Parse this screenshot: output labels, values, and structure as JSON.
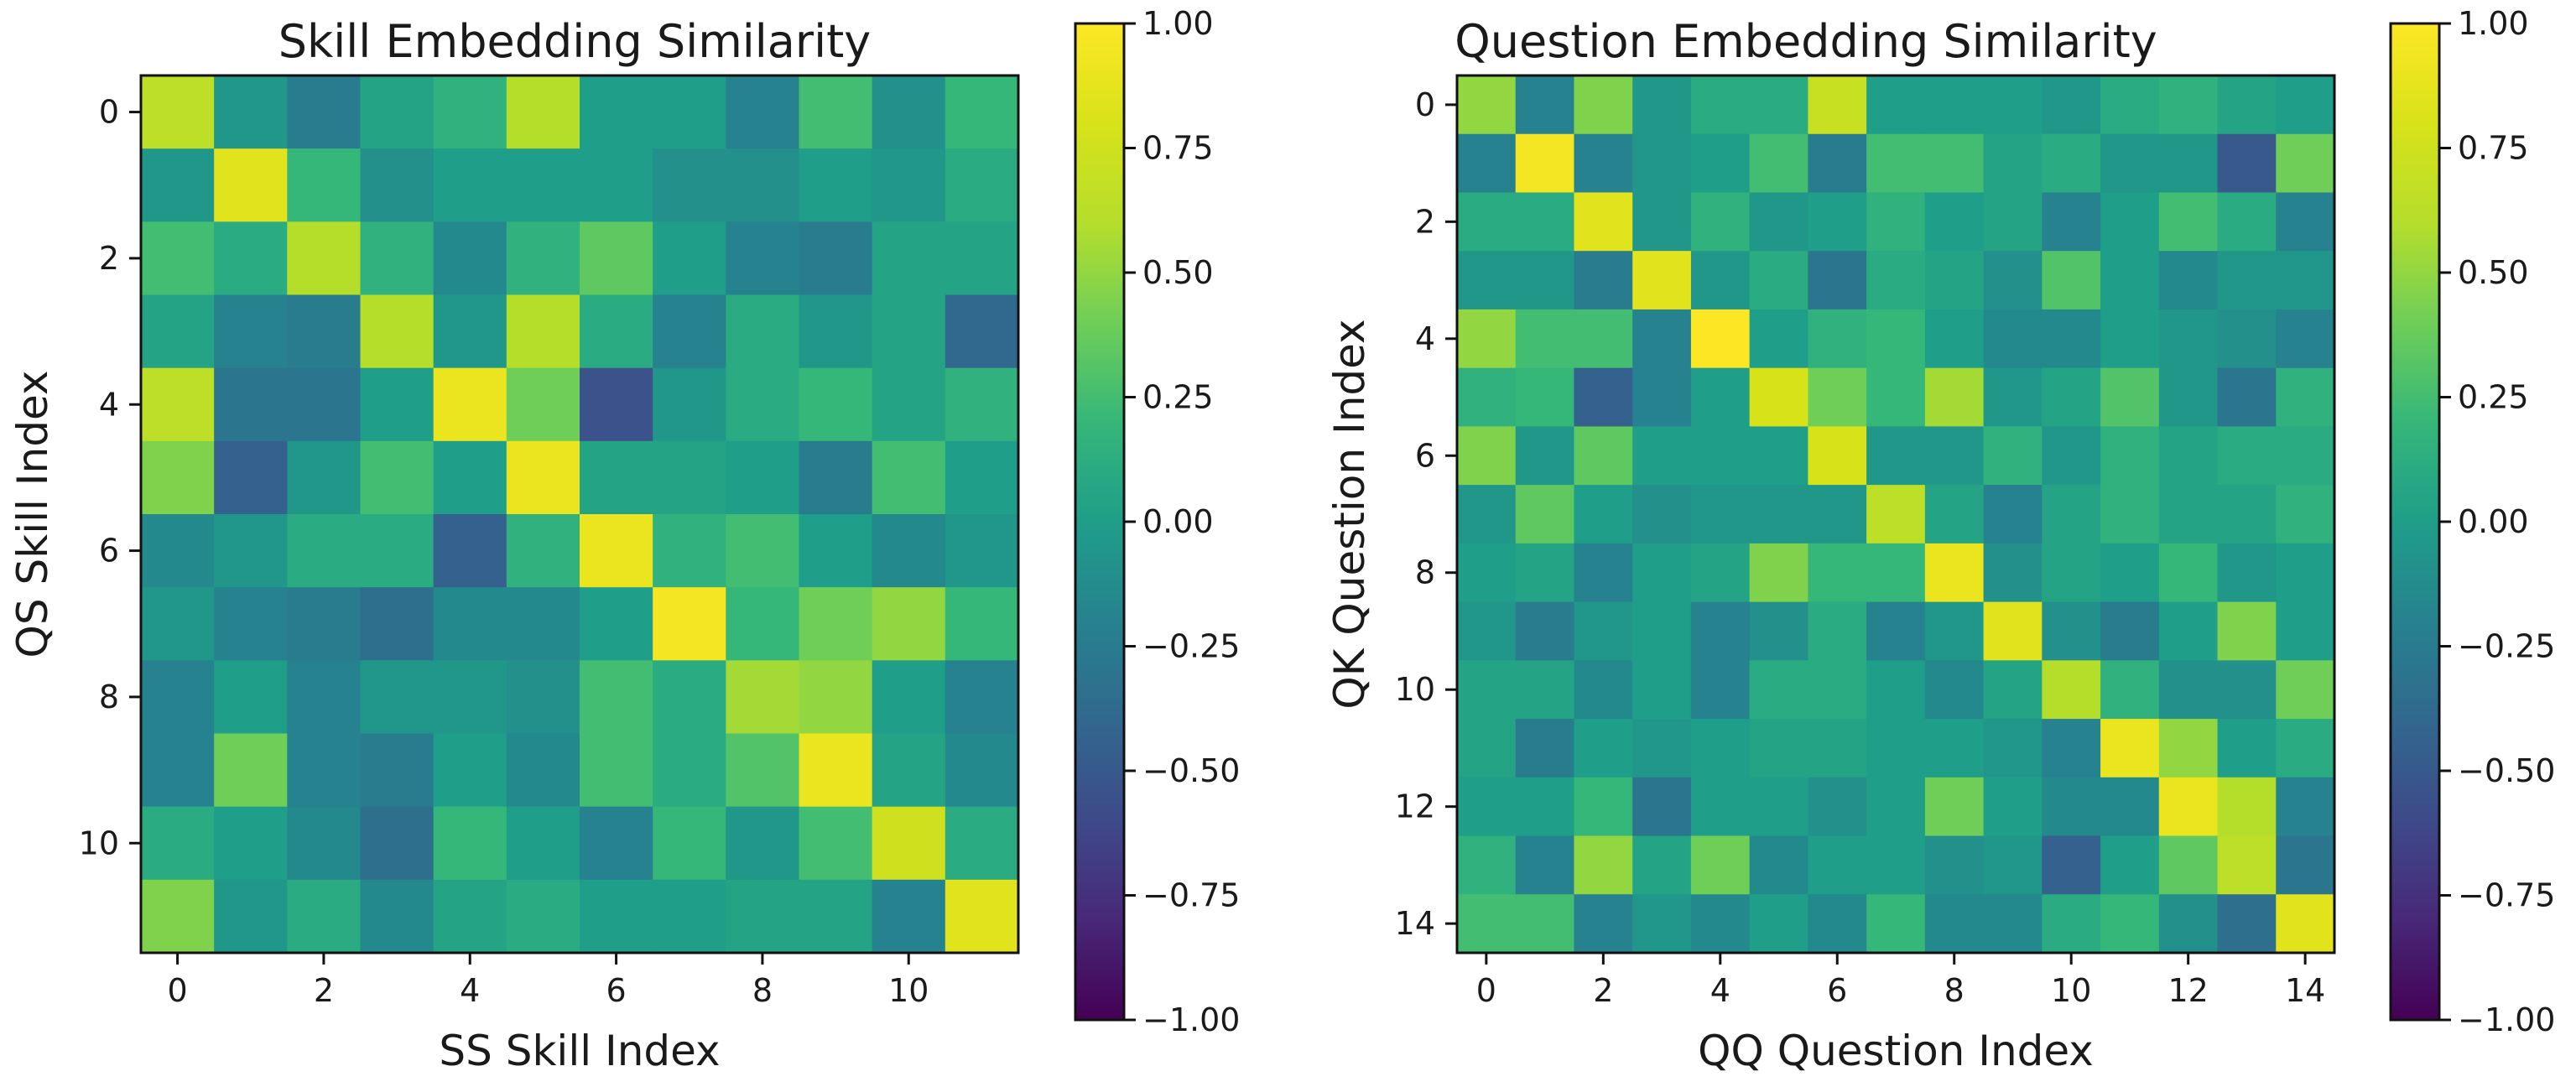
{
  "colormap": "viridis",
  "chart_data": [
    {
      "type": "heatmap",
      "title": "Skill Embedding Similarity",
      "xlabel": "SS Skill Index",
      "ylabel": "QS Skill Index",
      "xticks": [
        "0",
        "2",
        "4",
        "6",
        "8",
        "10"
      ],
      "yticks": [
        "0",
        "2",
        "4",
        "6",
        "8",
        "10"
      ],
      "tick_values": [
        0,
        2,
        4,
        6,
        8,
        10
      ],
      "size": 12,
      "vmin": -1.0,
      "vmax": 1.0,
      "colorbar_ticks": [
        "1.00",
        "0.75",
        "0.50",
        "0.25",
        "0.00",
        "−0.25",
        "−0.50",
        "−0.75",
        "−1.00"
      ],
      "colorbar_values": [
        1.0,
        0.75,
        0.5,
        0.25,
        0.0,
        -0.25,
        -0.5,
        -0.75,
        -1.0
      ],
      "values": [
        [
          0.65,
          -0.05,
          -0.25,
          0.05,
          0.15,
          0.6,
          0.0,
          0.0,
          -0.2,
          0.25,
          -0.1,
          0.2
        ],
        [
          -0.05,
          0.85,
          0.2,
          -0.1,
          0.0,
          0.0,
          0.0,
          -0.1,
          -0.1,
          0.0,
          -0.05,
          0.1
        ],
        [
          0.25,
          0.1,
          0.6,
          0.15,
          -0.15,
          0.15,
          0.35,
          0.0,
          -0.2,
          -0.25,
          0.05,
          0.05
        ],
        [
          0.05,
          -0.2,
          -0.25,
          0.6,
          -0.05,
          0.6,
          0.1,
          -0.2,
          0.1,
          -0.05,
          0.05,
          -0.4
        ],
        [
          0.65,
          -0.3,
          -0.3,
          0.0,
          0.9,
          0.4,
          -0.55,
          -0.05,
          0.1,
          0.2,
          0.05,
          0.15
        ],
        [
          0.45,
          -0.45,
          -0.05,
          0.25,
          0.0,
          0.9,
          0.05,
          0.05,
          0.0,
          -0.25,
          0.25,
          0.0
        ],
        [
          -0.15,
          -0.05,
          0.1,
          0.1,
          -0.45,
          0.15,
          0.9,
          0.15,
          0.25,
          0.0,
          -0.15,
          -0.05
        ],
        [
          -0.05,
          -0.2,
          -0.25,
          -0.35,
          -0.15,
          -0.15,
          0.0,
          0.95,
          0.2,
          0.4,
          0.5,
          0.2
        ],
        [
          -0.2,
          0.0,
          -0.2,
          -0.05,
          -0.05,
          -0.1,
          0.25,
          0.1,
          0.55,
          0.5,
          0.0,
          -0.2
        ],
        [
          -0.2,
          0.4,
          -0.2,
          -0.25,
          0.0,
          -0.15,
          0.25,
          0.1,
          0.3,
          0.9,
          0.05,
          -0.15
        ],
        [
          0.1,
          0.0,
          -0.15,
          -0.35,
          0.2,
          0.0,
          -0.2,
          0.2,
          -0.05,
          0.25,
          0.75,
          0.1
        ],
        [
          0.45,
          -0.05,
          0.1,
          -0.15,
          0.05,
          0.1,
          0.0,
          0.0,
          0.05,
          0.05,
          -0.2,
          0.85
        ]
      ]
    },
    {
      "type": "heatmap",
      "title": "Question Embedding Similarity",
      "xlabel": "QQ Question Index",
      "ylabel": "QK Question Index",
      "xticks": [
        "0",
        "2",
        "4",
        "6",
        "8",
        "10",
        "12",
        "14"
      ],
      "yticks": [
        "0",
        "2",
        "4",
        "6",
        "8",
        "10",
        "12",
        "14"
      ],
      "tick_values": [
        0,
        2,
        4,
        6,
        8,
        10,
        12,
        14
      ],
      "size": 15,
      "vmin": -1.0,
      "vmax": 1.0,
      "colorbar_ticks": [
        "1.00",
        "0.75",
        "0.50",
        "0.25",
        "0.00",
        "−0.25",
        "−0.50",
        "−0.75",
        "−1.00"
      ],
      "colorbar_values": [
        1.0,
        0.75,
        0.5,
        0.25,
        0.0,
        -0.25,
        -0.5,
        -0.75,
        -1.0
      ],
      "values": [
        [
          0.5,
          -0.2,
          0.45,
          -0.05,
          0.1,
          0.1,
          0.7,
          0.0,
          0.0,
          0.0,
          -0.05,
          0.1,
          0.15,
          0.05,
          0.0
        ],
        [
          -0.2,
          0.95,
          -0.2,
          -0.05,
          0.0,
          0.25,
          -0.25,
          0.25,
          0.25,
          0.05,
          0.1,
          -0.05,
          -0.05,
          -0.5,
          0.4
        ],
        [
          0.1,
          0.1,
          0.85,
          -0.05,
          0.15,
          -0.05,
          0.0,
          0.15,
          0.0,
          0.05,
          -0.2,
          0.0,
          0.25,
          0.1,
          -0.2
        ],
        [
          -0.05,
          -0.05,
          -0.25,
          0.85,
          -0.05,
          0.1,
          -0.3,
          0.1,
          0.05,
          -0.1,
          0.3,
          0.0,
          -0.15,
          -0.05,
          -0.05
        ],
        [
          0.5,
          0.25,
          0.25,
          -0.2,
          1.0,
          0.0,
          0.15,
          0.2,
          0.0,
          -0.15,
          -0.15,
          0.0,
          -0.05,
          -0.1,
          -0.2
        ],
        [
          0.15,
          0.2,
          -0.45,
          -0.2,
          0.0,
          0.8,
          0.4,
          0.2,
          0.55,
          -0.05,
          0.05,
          0.3,
          -0.05,
          -0.3,
          0.15
        ],
        [
          0.45,
          -0.05,
          0.35,
          0.0,
          0.0,
          0.0,
          0.8,
          -0.05,
          -0.05,
          0.15,
          -0.05,
          0.15,
          0.05,
          0.1,
          0.1
        ],
        [
          -0.05,
          0.35,
          0.0,
          -0.1,
          -0.05,
          -0.05,
          -0.05,
          0.65,
          0.05,
          -0.2,
          0.05,
          0.15,
          0.05,
          0.05,
          0.15
        ],
        [
          0.0,
          0.05,
          -0.2,
          0.0,
          0.05,
          0.45,
          0.2,
          0.2,
          0.9,
          -0.1,
          0.05,
          0.0,
          0.2,
          -0.05,
          0.0
        ],
        [
          -0.05,
          -0.25,
          -0.05,
          0.0,
          -0.2,
          -0.1,
          0.1,
          -0.2,
          -0.05,
          0.85,
          -0.1,
          -0.25,
          0.0,
          0.45,
          0.0
        ],
        [
          0.05,
          0.05,
          -0.15,
          0.0,
          -0.2,
          0.1,
          0.1,
          0.0,
          -0.15,
          0.05,
          0.6,
          0.15,
          -0.1,
          -0.1,
          0.4
        ],
        [
          0.05,
          -0.25,
          0.0,
          -0.05,
          0.0,
          0.05,
          0.05,
          0.0,
          0.0,
          -0.05,
          -0.2,
          0.9,
          0.5,
          0.0,
          0.1
        ],
        [
          0.0,
          0.0,
          0.2,
          -0.3,
          0.0,
          0.0,
          -0.1,
          0.0,
          0.4,
          0.0,
          -0.15,
          -0.15,
          0.9,
          0.6,
          -0.2
        ],
        [
          0.15,
          -0.2,
          0.5,
          0.05,
          0.4,
          -0.15,
          0.0,
          0.0,
          -0.1,
          -0.05,
          -0.45,
          0.0,
          0.35,
          0.65,
          -0.3
        ],
        [
          0.25,
          0.25,
          -0.2,
          -0.05,
          -0.15,
          0.0,
          -0.15,
          0.2,
          -0.15,
          -0.15,
          0.1,
          0.2,
          -0.1,
          -0.35,
          0.85
        ]
      ]
    }
  ]
}
